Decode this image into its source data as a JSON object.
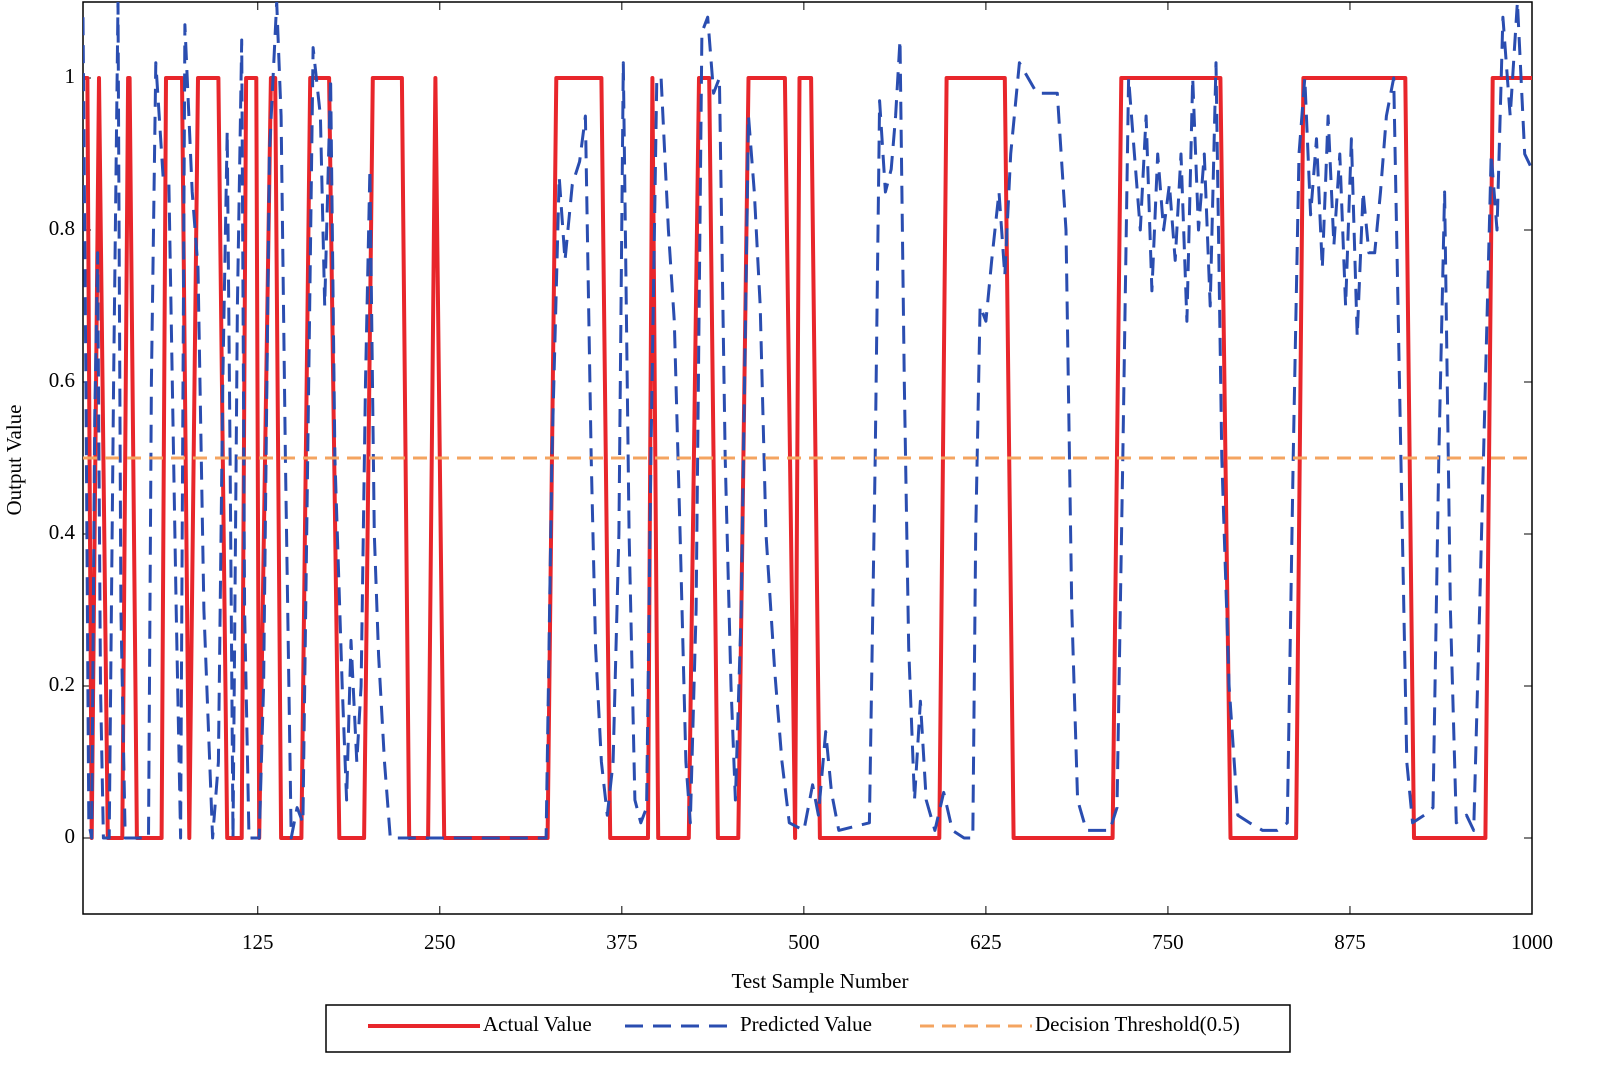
{
  "chart_data": {
    "type": "line",
    "xlabel": "Test Sample Number",
    "ylabel": "Output Value",
    "xlim": [
      5,
      1000
    ],
    "ylim": [
      -0.1,
      1.1
    ],
    "xticks": [
      125,
      250,
      375,
      500,
      625,
      750,
      875,
      1000
    ],
    "yticks": [
      0,
      0.2,
      0.4,
      0.6,
      0.8,
      1
    ],
    "legend": "bottom",
    "series": [
      {
        "name": "Actual Value",
        "color": "#e8262b",
        "line_style": "solid",
        "x": [
          5,
          8,
          11,
          16,
          22,
          32,
          36,
          37,
          42,
          59,
          62,
          73,
          78,
          84,
          98,
          104,
          114,
          117,
          124,
          126,
          134,
          137,
          141,
          155,
          161,
          174,
          181,
          198,
          204,
          224,
          229,
          242,
          247,
          253,
          324,
          330,
          361,
          367,
          393,
          396,
          400,
          421,
          428,
          435,
          441,
          455,
          462,
          468,
          487,
          494,
          497,
          505,
          511,
          593,
          598,
          638,
          644,
          712,
          718,
          786,
          793,
          838,
          843,
          913,
          919,
          968,
          973,
          1000
        ],
        "values": [
          1,
          1,
          0,
          1,
          0,
          0,
          1,
          1,
          0,
          0,
          1,
          1,
          0,
          1,
          1,
          0,
          0,
          1,
          1,
          0,
          1,
          1,
          0,
          0,
          1,
          1,
          0,
          0,
          1,
          1,
          0,
          0,
          1,
          0,
          0,
          1,
          1,
          0,
          0,
          1,
          0,
          0,
          1,
          1,
          0,
          0,
          1,
          1,
          1,
          0,
          1,
          1,
          0,
          0,
          1,
          1,
          0,
          0,
          1,
          1,
          0,
          0,
          1,
          1,
          0,
          0,
          1,
          1
        ]
      },
      {
        "name": "Predicted Value",
        "color": "#2a4db0",
        "line_style": "dashed",
        "x": [
          5,
          7,
          9,
          11,
          13,
          15,
          17,
          19,
          23,
          26,
          29,
          31,
          34,
          45,
          50,
          52,
          55,
          60,
          64,
          69,
          72,
          75,
          80,
          84,
          88,
          94,
          98,
          101,
          104,
          106,
          108,
          111,
          114,
          116,
          119,
          126,
          129,
          133,
          138,
          141,
          144,
          148,
          152,
          156,
          160,
          163,
          168,
          171,
          175,
          178,
          183,
          186,
          189,
          193,
          196,
          199,
          202,
          205,
          208,
          212,
          216,
          250,
          323,
          327,
          332,
          336,
          341,
          346,
          350,
          354,
          357,
          361,
          365,
          369,
          373,
          376,
          380,
          384,
          388,
          392,
          395,
          399,
          402,
          407,
          411,
          415,
          419,
          422,
          426,
          430,
          434,
          438,
          442,
          446,
          450,
          453,
          457,
          462,
          466,
          470,
          474,
          480,
          485,
          490,
          500,
          506,
          510,
          515,
          519,
          524,
          545,
          549,
          552,
          556,
          560,
          563,
          566,
          569,
          572,
          576,
          580,
          584,
          590,
          596,
          602,
          610,
          616,
          618,
          621,
          625,
          629,
          634,
          638,
          642,
          648,
          660,
          674,
          680,
          684,
          688,
          694,
          710,
          715,
          719,
          723,
          727,
          731,
          735,
          739,
          743,
          747,
          751,
          755,
          759,
          763,
          767,
          771,
          775,
          779,
          783,
          787,
          792,
          798,
          806,
          815,
          825,
          832,
          836,
          840,
          844,
          848,
          852,
          856,
          860,
          864,
          868,
          872,
          876,
          880,
          884,
          888,
          892,
          896,
          900,
          905,
          910,
          914,
          918,
          926,
          932,
          936,
          940,
          944,
          948,
          955,
          960,
          964,
          968,
          972,
          976,
          980,
          985,
          990,
          995,
          1000
        ],
        "values": [
          1.08,
          0.6,
          0.02,
          0,
          0.55,
          0.77,
          0.2,
          0,
          0,
          0.6,
          1.1,
          0.3,
          0,
          0,
          0,
          0.6,
          1.02,
          0.87,
          0.86,
          0.3,
          0,
          1.07,
          0.85,
          0.75,
          0.3,
          0,
          0.1,
          0.6,
          0.93,
          0.5,
          0,
          0.7,
          1.05,
          0.3,
          0,
          0,
          0.2,
          0.9,
          1.1,
          0.95,
          0.5,
          0,
          0.04,
          0.02,
          0.6,
          1.04,
          0.95,
          0.7,
          1,
          0.5,
          0.2,
          0.05,
          0.26,
          0.1,
          0.2,
          0.6,
          0.88,
          0.4,
          0.24,
          0.1,
          0,
          0,
          0,
          0.5,
          0.87,
          0.76,
          0.86,
          0.89,
          0.95,
          0.5,
          0.25,
          0.1,
          0.03,
          0.1,
          0.4,
          1.02,
          0.4,
          0.05,
          0.02,
          0.04,
          0.5,
          1,
          1,
          0.8,
          0.68,
          0.4,
          0.1,
          0.02,
          0.3,
          1.06,
          1.08,
          0.98,
          1,
          0.5,
          0.2,
          0.05,
          0.3,
          0.95,
          0.85,
          0.7,
          0.4,
          0.22,
          0.1,
          0.02,
          0.01,
          0.07,
          0.03,
          0.14,
          0.06,
          0.01,
          0.02,
          0.5,
          0.97,
          0.85,
          0.88,
          0.95,
          1.05,
          0.6,
          0.25,
          0.05,
          0.18,
          0.05,
          0.01,
          0.06,
          0.01,
          0,
          0,
          0.4,
          0.7,
          0.68,
          0.76,
          0.85,
          0.74,
          0.9,
          1.02,
          0.98,
          0.98,
          0.8,
          0.3,
          0.05,
          0.01,
          0.01,
          0.04,
          0.5,
          1,
          0.9,
          0.8,
          0.95,
          0.72,
          0.9,
          0.8,
          0.86,
          0.76,
          0.9,
          0.68,
          1,
          0.8,
          0.9,
          0.7,
          1.02,
          0.5,
          0.2,
          0.03,
          0.02,
          0.01,
          0.01,
          0.02,
          0.5,
          0.9,
          1,
          0.82,
          0.92,
          0.75,
          0.95,
          0.78,
          0.9,
          0.7,
          0.92,
          0.66,
          0.85,
          0.77,
          0.77,
          0.85,
          0.95,
          1,
          0.5,
          0.1,
          0.02,
          0.03,
          0.04,
          0.5,
          0.85,
          0.3,
          0.02,
          0.03,
          0.01,
          0.3,
          0.6,
          0.9,
          0.8,
          1.08,
          0.95,
          1.1,
          0.9,
          0.88
        ]
      },
      {
        "name": "Decision Threshold(0.5)",
        "color": "#f4a460",
        "line_style": "dashed",
        "x": [
          5,
          1000
        ],
        "values": [
          0.5,
          0.5
        ]
      }
    ]
  }
}
